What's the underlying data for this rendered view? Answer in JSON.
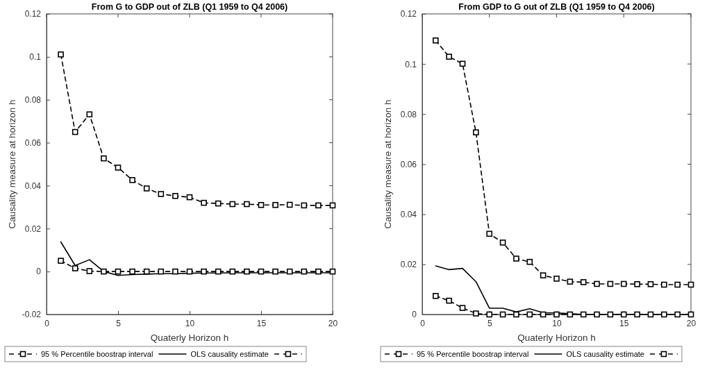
{
  "chart_data": [
    {
      "type": "line",
      "title": "From G to GDP out of ZLB (Q1 1959 to Q4 2006)",
      "xlabel": "Quaterly Horizon h",
      "ylabel": "Causality measure at horizon h",
      "x": [
        1,
        2,
        3,
        4,
        5,
        6,
        7,
        8,
        9,
        10,
        11,
        12,
        13,
        14,
        15,
        16,
        17,
        18,
        19,
        20
      ],
      "xlim": [
        0,
        20
      ],
      "xticks": [
        0,
        5,
        10,
        15,
        20
      ],
      "ylim": [
        -0.02,
        0.12
      ],
      "yticks": [
        -0.02,
        0,
        0.02,
        0.04,
        0.06,
        0.08,
        0.1,
        0.12
      ],
      "grid": false,
      "legend": "bottom",
      "series": [
        {
          "name": "95 % Percentile boostrap interval",
          "color": "#000000",
          "marker": "square",
          "line_style": "dashed",
          "values": [
            0.1011,
            0.065,
            0.0732,
            0.0527,
            0.0484,
            0.0426,
            0.0387,
            0.0361,
            0.0352,
            0.0346,
            0.032,
            0.0317,
            0.0314,
            0.0314,
            0.031,
            0.031,
            0.0311,
            0.0308,
            0.0308,
            0.0308
          ]
        },
        {
          "name": "OLS causality estimate",
          "color": "#000000",
          "marker": "none",
          "line_style": "solid",
          "values": [
            0.0138,
            0.0028,
            0.0055,
            0,
            -0.0018,
            -0.0014,
            -0.0012,
            -0.001,
            -0.001,
            -0.0008,
            -0.0007,
            -0.0007,
            -0.0006,
            -0.0006,
            -0.0006,
            -0.0006,
            -0.0006,
            -0.0006,
            -0.0006,
            -0.0006
          ]
        },
        {
          "color": "#000000",
          "marker": "square",
          "line_style": "dashed",
          "values": [
            0.005,
            0.0015,
            0.0002,
            0,
            0,
            0,
            0,
            0,
            0,
            0,
            0,
            0,
            0,
            0,
            0,
            0,
            0,
            0,
            0,
            0
          ]
        }
      ]
    },
    {
      "type": "line",
      "title": "From GDP to G out of ZLB (Q1 1959 to Q4 2006)",
      "xlabel": "Quaterly Horizon h",
      "ylabel": "Causality measure at horizon h",
      "x": [
        1,
        2,
        3,
        4,
        5,
        6,
        7,
        8,
        9,
        10,
        11,
        12,
        13,
        14,
        15,
        16,
        17,
        18,
        19,
        20
      ],
      "xlim": [
        0,
        20
      ],
      "xticks": [
        0,
        5,
        10,
        15,
        20
      ],
      "ylim": [
        0,
        0.12
      ],
      "yticks": [
        0,
        0.02,
        0.04,
        0.06,
        0.08,
        0.1,
        0.12
      ],
      "grid": false,
      "legend": "bottom",
      "series": [
        {
          "name": "95 % Percentile boostrap interval",
          "color": "#000000",
          "marker": "square",
          "line_style": "dashed",
          "values": [
            0.1094,
            0.1029,
            0.1001,
            0.0727,
            0.0322,
            0.0287,
            0.0223,
            0.021,
            0.0156,
            0.0143,
            0.0131,
            0.0129,
            0.0122,
            0.0122,
            0.0122,
            0.0121,
            0.0121,
            0.0119,
            0.0119,
            0.0119
          ]
        },
        {
          "name": "OLS causality estimate",
          "color": "#000000",
          "marker": "none",
          "line_style": "solid",
          "values": [
            0.0194,
            0.0179,
            0.0184,
            0.0131,
            0.0025,
            0.0025,
            0.001,
            0.0023,
            0.0007,
            0.0006,
            0.0003,
            0,
            0,
            0,
            0,
            0,
            0,
            0,
            0,
            0
          ]
        },
        {
          "color": "#000000",
          "marker": "square",
          "line_style": "dashed",
          "values": [
            0.0074,
            0.0055,
            0.0026,
            0.0004,
            0,
            0,
            0,
            0,
            0,
            0,
            0,
            0,
            0,
            0,
            0,
            0,
            0,
            0,
            0,
            0
          ]
        }
      ]
    }
  ]
}
